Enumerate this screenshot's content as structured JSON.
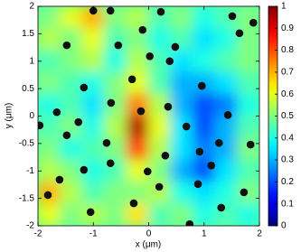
{
  "chart_data": {
    "type": "heatmap",
    "colormap": "jet",
    "x_label": "x (μm)",
    "y_label": "y (μm)",
    "xlim": [
      -2,
      2
    ],
    "ylim": [
      -2,
      2
    ],
    "xticks": [
      -2,
      -1,
      0,
      1,
      2
    ],
    "yticks": [
      -2,
      -1.5,
      -1,
      -0.5,
      0,
      0.5,
      1,
      1.5,
      2
    ],
    "z": [
      [
        0.5,
        0.6,
        0.7,
        0.5,
        0.55,
        0.45,
        0.5,
        0.4,
        0.45,
        0.5
      ],
      [
        0.55,
        0.5,
        0.6,
        0.45,
        0.5,
        0.4,
        0.45,
        0.35,
        0.4,
        0.5
      ],
      [
        0.45,
        0.5,
        0.55,
        0.4,
        0.55,
        0.45,
        0.35,
        0.4,
        0.45,
        0.5
      ],
      [
        0.5,
        0.45,
        0.4,
        0.5,
        0.6,
        0.45,
        0.3,
        0.3,
        0.35,
        0.45
      ],
      [
        0.4,
        0.45,
        0.35,
        0.5,
        0.75,
        0.55,
        0.3,
        0.2,
        0.25,
        0.4
      ],
      [
        0.45,
        0.5,
        0.4,
        0.55,
        0.95,
        0.6,
        0.35,
        0.2,
        0.3,
        0.45
      ],
      [
        0.5,
        0.4,
        0.45,
        0.5,
        0.8,
        0.55,
        0.35,
        0.25,
        0.3,
        0.5
      ],
      [
        0.55,
        0.5,
        0.4,
        0.45,
        0.6,
        0.5,
        0.3,
        0.2,
        0.35,
        0.45
      ],
      [
        0.7,
        0.55,
        0.45,
        0.5,
        0.5,
        0.55,
        0.4,
        0.35,
        0.4,
        0.5
      ],
      [
        0.6,
        0.5,
        0.55,
        0.5,
        0.65,
        0.45,
        0.5,
        0.4,
        0.45,
        0.4
      ]
    ],
    "colorbar": {
      "lim": [
        0,
        1
      ],
      "ticks": [
        0,
        0.1,
        0.2,
        0.3,
        0.4,
        0.5,
        0.6,
        0.7,
        0.8,
        0.9,
        1
      ]
    },
    "points": {
      "type": "scatter",
      "color": "#111111",
      "x": [
        -1.0,
        -0.69,
        0.22,
        -1.48,
        -0.55,
        -0.11,
        0.48,
        1.64,
        1.51,
        1.89,
        0.02,
        0.38,
        -0.3,
        -1.17,
        -0.68,
        -0.14,
        -1.66,
        -1.97,
        -1.27,
        -1.48,
        -0.76,
        0.68,
        1.43,
        1.84,
        1.27,
        0.92,
        1.13,
        0.3,
        -0.02,
        -0.69,
        -1.17,
        -1.61,
        -1.82,
        0.19,
        0.89,
        1.72,
        1.31,
        -0.27,
        0.74,
        -1.05,
        0.35,
        0.96
      ],
      "y": [
        1.92,
        1.92,
        1.9,
        1.29,
        1.29,
        1.57,
        1.26,
        1.51,
        1.82,
        1.7,
        1.09,
        1.0,
        0.67,
        0.52,
        0.24,
        0.09,
        0.07,
        -0.17,
        -0.11,
        -0.35,
        -0.49,
        -0.19,
        0.02,
        -0.52,
        -0.49,
        -0.65,
        -0.9,
        -0.72,
        -1.01,
        -0.86,
        -0.98,
        -1.16,
        -1.44,
        -1.29,
        -1.24,
        -1.39,
        -1.67,
        -1.59,
        -1.97,
        -1.75,
        0.17,
        0.55
      ]
    }
  }
}
